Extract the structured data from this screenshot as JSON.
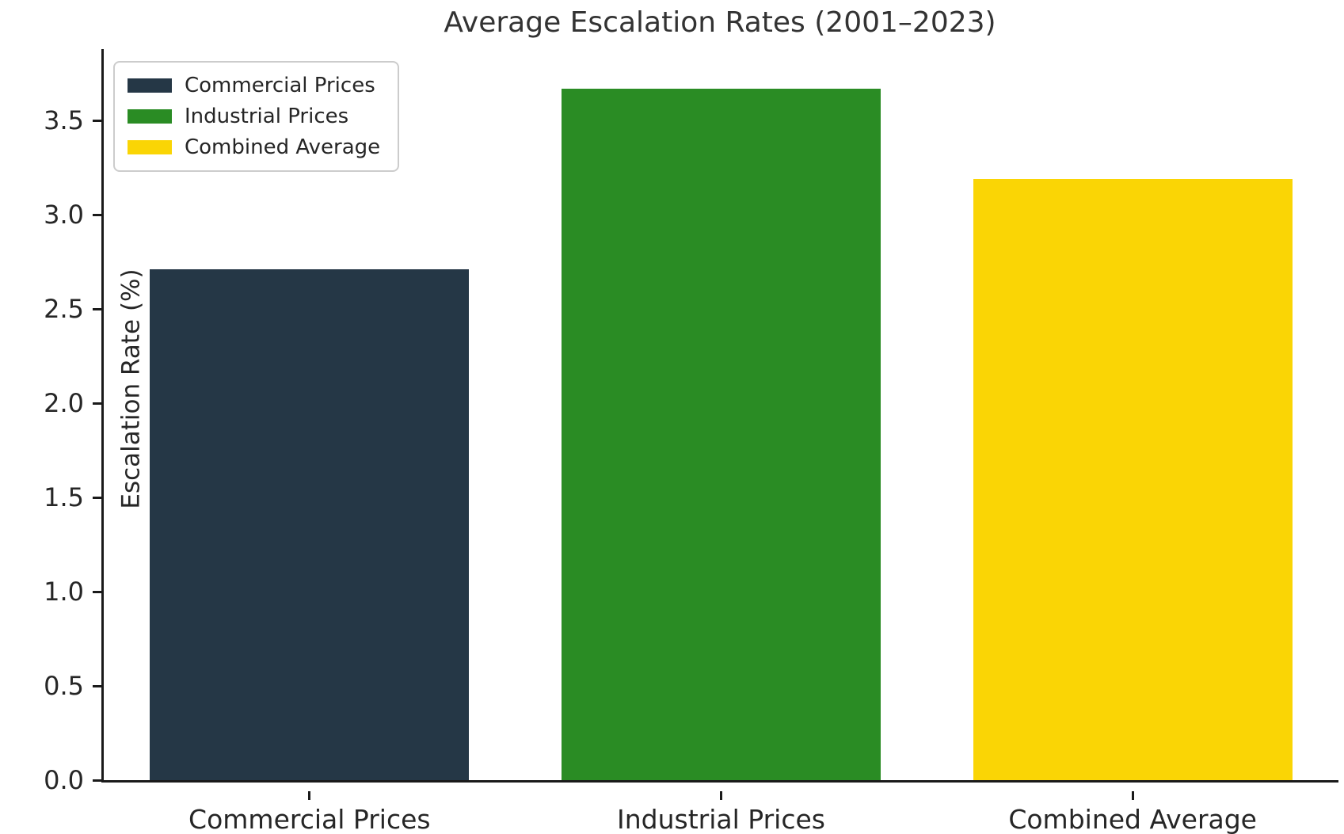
{
  "chart_data": {
    "type": "bar",
    "title": "Average Escalation Rates (2001–2023)",
    "xlabel": "",
    "ylabel": "Escalation Rate (%)",
    "categories": [
      "Commercial Prices",
      "Industrial Prices",
      "Combined Average"
    ],
    "values": [
      2.71,
      3.67,
      3.19
    ],
    "colors": [
      "#253746",
      "#2a8c24",
      "#fad505"
    ],
    "legend": [
      "Commercial Prices",
      "Industrial Prices",
      "Combined Average"
    ],
    "legend_position": "upper left",
    "yticks": [
      0.0,
      0.5,
      1.0,
      1.5,
      2.0,
      2.5,
      3.0,
      3.5
    ],
    "ylim": [
      0,
      3.88
    ],
    "grid": false
  }
}
